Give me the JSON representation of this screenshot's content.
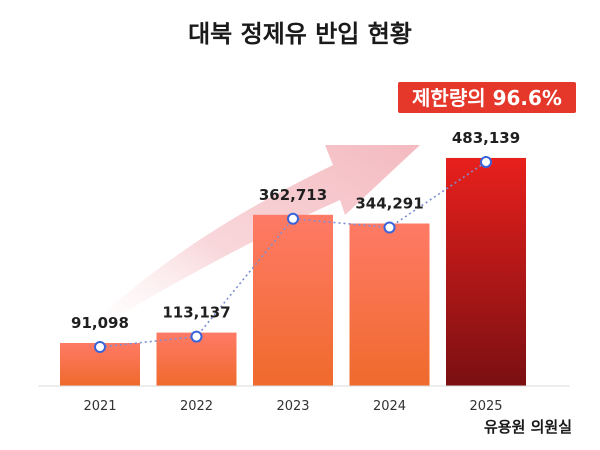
{
  "chart_data": {
    "type": "bar",
    "title": "대북 정제유 반입 현황",
    "categories": [
      "2021",
      "2022",
      "2023",
      "2024",
      "2025"
    ],
    "values": [
      91098,
      113137,
      362713,
      344291,
      483139
    ],
    "value_labels": [
      "91,098",
      "113,137",
      "362,713",
      "344,291",
      "483,139"
    ],
    "ylim": [
      0,
      500000
    ],
    "grid": false,
    "legend": "none",
    "callout": "제한량의 96.6%",
    "source": "유용원 의원실",
    "colors": {
      "bar_top": "#ff7a66",
      "bar_bottom": "#ef6a2c",
      "highlight_top": "#e8201c",
      "highlight_bottom": "#7a0f12",
      "callout_bg": "#e5372a",
      "point": "#3b63d9",
      "arrow": "#f3b7bd"
    }
  }
}
